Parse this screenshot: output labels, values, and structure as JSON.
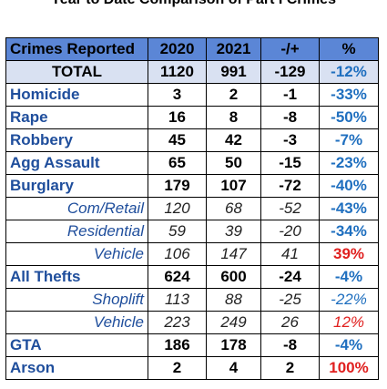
{
  "title": "Year to Date Comparison of Part I Crimes",
  "colors": {
    "header_bg": "#5b86d6",
    "total_bg": "#d9e1f2",
    "label_blue": "#1f4e9c",
    "pct_blue": "#1f6fbf",
    "pct_red": "#e0201f"
  },
  "headers": [
    "Crimes Reported",
    "2020",
    "2021",
    "-/+",
    "%"
  ],
  "total": {
    "label": "TOTAL",
    "y2020": "1120",
    "y2021": "991",
    "diff": "-129",
    "pct": "-12%"
  },
  "rows": [
    {
      "label": "Homicide",
      "y2020": "3",
      "y2021": "2",
      "diff": "-1",
      "pct": "-33%"
    },
    {
      "label": "Rape",
      "y2020": "16",
      "y2021": "8",
      "diff": "-8",
      "pct": "-50%"
    },
    {
      "label": "Robbery",
      "y2020": "45",
      "y2021": "42",
      "diff": "-3",
      "pct": "-7%"
    },
    {
      "label": "Agg Assault",
      "y2020": "65",
      "y2021": "50",
      "diff": "-15",
      "pct": "-23%"
    },
    {
      "label": "Burglary",
      "y2020": "179",
      "y2021": "107",
      "diff": "-72",
      "pct": "-40%"
    },
    {
      "label": "Com/Retail",
      "y2020": "120",
      "y2021": "68",
      "diff": "-52",
      "pct": "-43%"
    },
    {
      "label": "Residential",
      "y2020": "59",
      "y2021": "39",
      "diff": "-20",
      "pct": "-34%"
    },
    {
      "label": "Vehicle",
      "y2020": "106",
      "y2021": "147",
      "diff": "41",
      "pct": "39%"
    },
    {
      "label": "All Thefts",
      "y2020": "624",
      "y2021": "600",
      "diff": "-24",
      "pct": "-4%"
    },
    {
      "label": "Shoplift",
      "y2020": "113",
      "y2021": "88",
      "diff": "-25",
      "pct": "-22%"
    },
    {
      "label": "Vehicle",
      "y2020": "223",
      "y2021": "249",
      "diff": "26",
      "pct": "12%"
    },
    {
      "label": "GTA",
      "y2020": "186",
      "y2021": "178",
      "diff": "-8",
      "pct": "-4%"
    },
    {
      "label": "Arson",
      "y2020": "2",
      "y2021": "4",
      "diff": "2",
      "pct": "100%"
    }
  ]
}
